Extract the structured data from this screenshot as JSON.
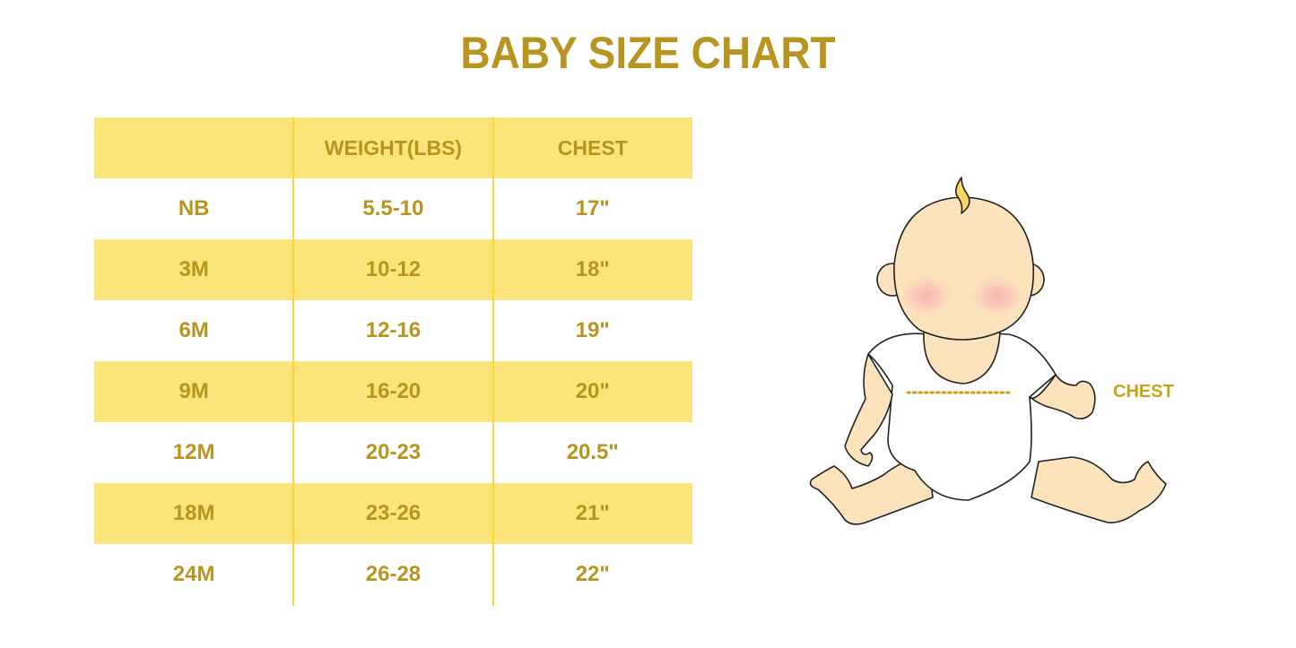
{
  "title": "BABY SIZE CHART",
  "table": {
    "headers": [
      "",
      "WEIGHT(LBS)",
      "CHEST"
    ],
    "rows": [
      [
        "NB",
        "5.5-10",
        "17\""
      ],
      [
        "3M",
        "10-12",
        "18\""
      ],
      [
        "6M",
        "12-16",
        "19\""
      ],
      [
        "9M",
        "16-20",
        "20\""
      ],
      [
        "12M",
        "20-23",
        "20.5\""
      ],
      [
        "18M",
        "23-26",
        "21\""
      ],
      [
        "24M",
        "26-28",
        "22\""
      ]
    ]
  },
  "illustration": {
    "chest_label": "CHEST"
  },
  "colors": {
    "text": "#B8951F",
    "band": "#FBE57B",
    "divider": "#F9D43A",
    "skin": "#FCE3BC"
  }
}
